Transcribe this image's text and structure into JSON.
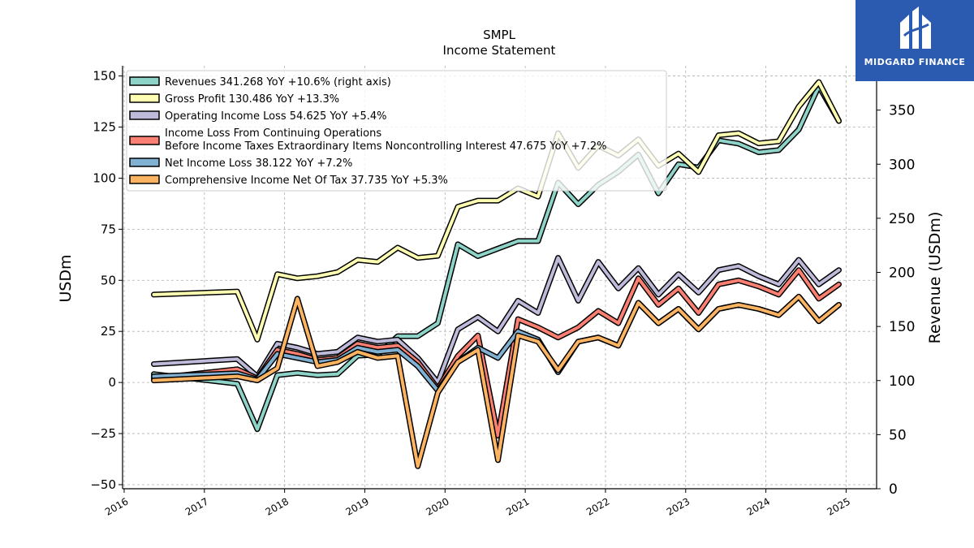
{
  "brand": {
    "name": "MIDGARD FINANCE",
    "logo_icon": "midgard-logo-icon",
    "color": "#2a5bb0"
  },
  "chart_data": {
    "type": "line",
    "title": "SMPL",
    "subtitle": "Income Statement",
    "ylabel": "USDm",
    "ylabel_right": "Revenue (USDm)",
    "ylim": [
      -52,
      155
    ],
    "ylim_right": [
      0,
      391
    ],
    "yticks": [
      -50,
      -25,
      0,
      25,
      50,
      75,
      100,
      125,
      150
    ],
    "yticks_labels": [
      "−50",
      "−25",
      "0",
      "25",
      "50",
      "75",
      "100",
      "125",
      "150"
    ],
    "yticks_right": [
      0,
      50,
      100,
      150,
      200,
      250,
      300,
      350
    ],
    "xlim": [
      2015.98,
      2025.38
    ],
    "xticks": [
      "2016",
      "2017",
      "2018",
      "2019",
      "2020",
      "2021",
      "2022",
      "2023",
      "2024",
      "2025"
    ],
    "grid": true,
    "legend_position": "top-left",
    "x": [
      2016.37,
      2017.41,
      2017.66,
      2017.91,
      2018.16,
      2018.41,
      2018.66,
      2018.91,
      2019.16,
      2019.41,
      2019.66,
      2019.91,
      2020.16,
      2020.41,
      2020.66,
      2020.91,
      2021.16,
      2021.41,
      2021.66,
      2021.91,
      2022.16,
      2022.41,
      2022.66,
      2022.91,
      2023.16,
      2023.41,
      2023.66,
      2023.91,
      2024.16,
      2024.41,
      2024.66,
      2024.91
    ],
    "series": [
      {
        "name": "Revenues  341.268 YoY +10.6% (right axis)",
        "axis": "right",
        "color": "#8dd3c7",
        "values": [
          106,
          97,
          55,
          105,
          107,
          105,
          106,
          123,
          124,
          141,
          141,
          153,
          226,
          215,
          222,
          229,
          229,
          283,
          263,
          281,
          293,
          309,
          273,
          300,
          297,
          322,
          319,
          311,
          313,
          332,
          372,
          340
        ]
      },
      {
        "name": "Gross Profit  130.486 YoY +13.3%",
        "axis": "left",
        "color": "#ffffb3",
        "values": [
          43,
          44.5,
          21,
          53,
          51,
          52,
          54,
          60,
          59,
          66,
          61,
          62,
          86,
          89,
          89,
          95,
          91,
          122,
          105,
          116,
          111,
          119,
          106,
          112,
          103,
          121,
          122,
          117,
          118,
          135,
          147,
          128
        ]
      },
      {
        "name": "Operating Income Loss  54.625 YoY +5.4%",
        "axis": "left",
        "color": "#bebada",
        "values": [
          9,
          11.5,
          3,
          19,
          17,
          14,
          15,
          22,
          20,
          21,
          12,
          0,
          26,
          32,
          25,
          40,
          34,
          61,
          40,
          59,
          46,
          56,
          43,
          53,
          44,
          55,
          57,
          52,
          48,
          60,
          48,
          55
        ]
      },
      {
        "name": "Income Loss From Continuing Operations\nBefore Income Taxes Extraordinary Items Noncontrolling Interest  47.675 YoY +7.2%",
        "axis": "left",
        "color": "#fb8072",
        "values": [
          2,
          6.5,
          2,
          16,
          14,
          11,
          12,
          19,
          17,
          18,
          10,
          -3,
          13,
          23,
          -26,
          31,
          27,
          22,
          27,
          35,
          29,
          51,
          38,
          46,
          34,
          48,
          50,
          47,
          43,
          55,
          41,
          48
        ]
      },
      {
        "name": "Net Income Loss  38.122 YoY +7.2%",
        "axis": "left",
        "color": "#80b1d3",
        "values": [
          3,
          4.5,
          1.5,
          14,
          12,
          10,
          11,
          17,
          15,
          16,
          8,
          -4,
          10,
          17,
          12,
          25,
          21,
          5,
          20,
          22,
          18,
          39,
          29,
          36,
          26,
          36,
          38,
          36,
          33,
          42,
          30,
          38
        ]
      },
      {
        "name": "Comprehensive Income Net Of Tax  37.735 YoY +5.3%",
        "axis": "left",
        "color": "#fdb462",
        "values": [
          1,
          3,
          1,
          7,
          41,
          8,
          10,
          15,
          12,
          13,
          -41,
          -5,
          10,
          16,
          -38,
          23,
          20,
          6,
          20,
          22,
          18,
          39,
          29,
          36,
          26,
          36,
          38,
          36,
          33,
          42,
          30,
          38
        ]
      }
    ]
  }
}
